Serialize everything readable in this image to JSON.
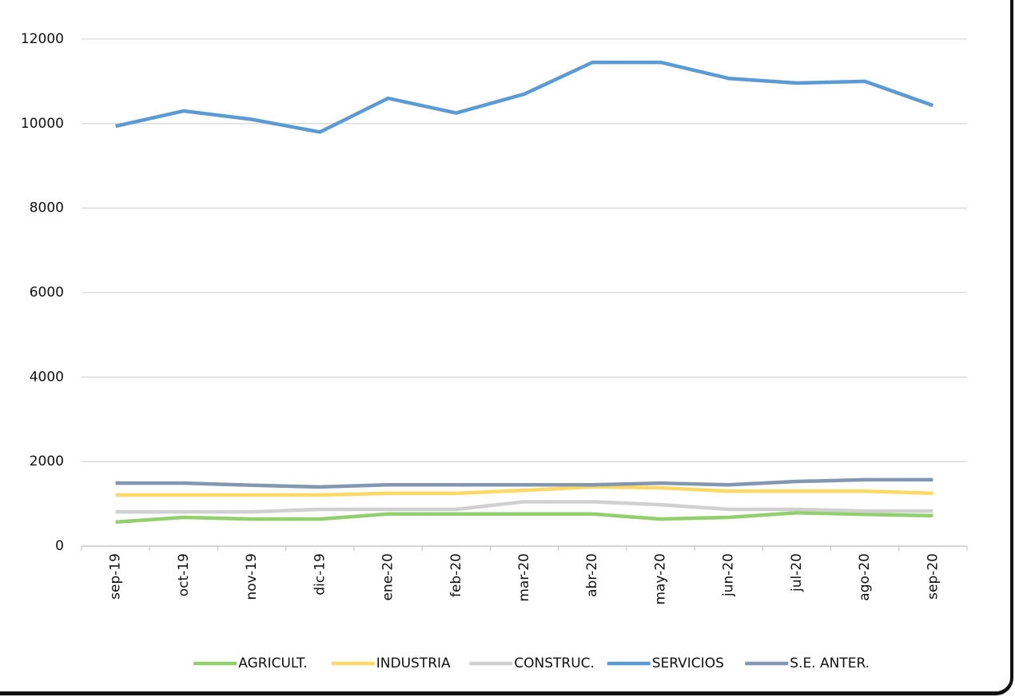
{
  "chart_data": {
    "type": "line",
    "categories": [
      "sep-19",
      "oct-19",
      "nov-19",
      "dic-19",
      "ene-20",
      "feb-20",
      "mar-20",
      "abr-20",
      "may-20",
      "jun-20",
      "jul-20",
      "ago-20",
      "sep-20"
    ],
    "series": [
      {
        "name": "AGRICULT.",
        "color": "#92cf6f",
        "values": [
          570,
          680,
          640,
          640,
          760,
          760,
          760,
          760,
          640,
          680,
          790,
          750,
          720
        ]
      },
      {
        "name": "INDUSTRIA",
        "color": "#ffd966",
        "values": [
          1210,
          1210,
          1210,
          1210,
          1250,
          1250,
          1320,
          1400,
          1380,
          1300,
          1300,
          1300,
          1250
        ]
      },
      {
        "name": "CONSTRUC.",
        "color": "#d0d0d0",
        "values": [
          810,
          810,
          810,
          870,
          870,
          870,
          1050,
          1050,
          980,
          870,
          870,
          830,
          830
        ]
      },
      {
        "name": "SERVICIOS",
        "color": "#5b9bd5",
        "values": [
          9940,
          10300,
          10100,
          9800,
          10600,
          10250,
          10700,
          11450,
          11450,
          11070,
          10960,
          11000,
          10430
        ]
      },
      {
        "name": "S.E. ANTER.",
        "color": "#8497b0",
        "values": [
          1490,
          1490,
          1440,
          1400,
          1450,
          1450,
          1450,
          1450,
          1490,
          1450,
          1530,
          1570,
          1570
        ]
      }
    ],
    "ylim": [
      0,
      12000
    ],
    "yticks": [
      0,
      2000,
      4000,
      6000,
      8000,
      10000,
      12000
    ],
    "grid": true,
    "legend": "bottom"
  }
}
